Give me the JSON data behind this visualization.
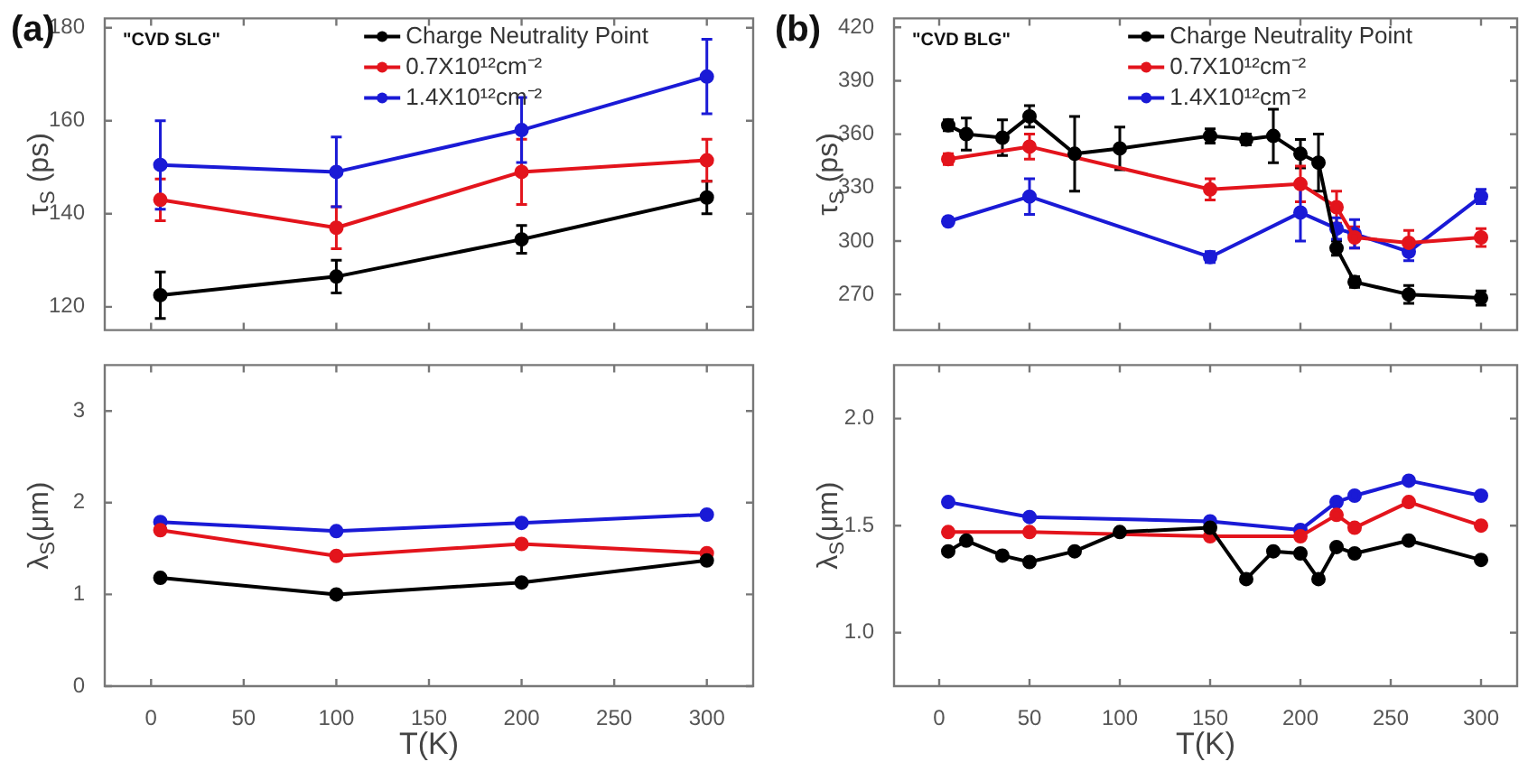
{
  "chart_data": [
    {
      "type": "line",
      "ylabel": "τ$_{S}$ (ps)",
      "annotations": [
        "(a)",
        "\"CVD SLG\""
      ],
      "xlim": [
        -25,
        325
      ],
      "xticks": [
        0,
        50,
        100,
        150,
        200,
        250,
        300
      ],
      "ylim": [
        115,
        182
      ],
      "yticks": [
        120,
        140,
        160,
        180
      ],
      "tick_labels": "y",
      "grid": false,
      "legend": "top right",
      "marker": "circle",
      "series": [
        {
          "name": "Charge Neutrality Point",
          "color": "#000000",
          "x": [
            5,
            100,
            200,
            300
          ],
          "values": [
            122.5,
            126.5,
            134.5,
            143.5
          ],
          "errors": [
            5,
            3.5,
            3,
            3.5
          ]
        },
        {
          "name": "0.7X10¹²cm⁻²",
          "color": "#e3141c",
          "x": [
            5,
            100,
            200,
            300
          ],
          "values": [
            143,
            137,
            149,
            151.5
          ],
          "errors": [
            4.5,
            4.5,
            7,
            4.5
          ]
        },
        {
          "name": "1.4X10¹²cm⁻²",
          "color": "#1a1ad6",
          "x": [
            5,
            100,
            200,
            300
          ],
          "values": [
            150.5,
            149,
            158,
            169.5
          ],
          "errors": [
            9.5,
            7.5,
            7,
            8
          ]
        }
      ]
    },
    {
      "type": "line",
      "xlabel": "T(K)",
      "ylabel": "λ$_{S}$(μm)",
      "xlim": [
        -25,
        325
      ],
      "xticks": [
        0,
        50,
        100,
        150,
        200,
        250,
        300
      ],
      "ylim": [
        0,
        3.5
      ],
      "yticks": [
        0,
        1,
        2,
        3
      ],
      "grid": false,
      "legend": false,
      "marker": "circle",
      "series": [
        {
          "color": "#000000",
          "x": [
            5,
            100,
            200,
            300
          ],
          "values": [
            1.18,
            1.0,
            1.13,
            1.37
          ]
        },
        {
          "color": "#e3141c",
          "x": [
            5,
            100,
            200,
            300
          ],
          "values": [
            1.7,
            1.42,
            1.55,
            1.45
          ]
        },
        {
          "color": "#1a1ad6",
          "x": [
            5,
            100,
            200,
            300
          ],
          "values": [
            1.79,
            1.69,
            1.78,
            1.87
          ]
        }
      ]
    },
    {
      "type": "line",
      "ylabel": "τ$_{S}$ (ps)",
      "annotations": [
        "(b)",
        "\"CVD BLG\""
      ],
      "xlim": [
        -25,
        320
      ],
      "xticks": [
        0,
        50,
        100,
        150,
        200,
        250,
        300
      ],
      "ylim": [
        250,
        425
      ],
      "yticks": [
        270,
        300,
        330,
        360,
        390,
        420
      ],
      "tick_labels": "y",
      "grid": false,
      "legend": "top right",
      "marker": "circle",
      "series": [
        {
          "name": "Charge Neutrality Point",
          "color": "#000000",
          "x": [
            5,
            15,
            35,
            50,
            75,
            100,
            150,
            170,
            185,
            200,
            210,
            220,
            230,
            260,
            300
          ],
          "values": [
            365,
            360,
            358,
            370,
            349,
            352,
            359,
            357,
            359,
            349,
            344,
            296,
            277,
            270,
            268
          ],
          "errors": [
            3,
            9,
            10,
            6,
            21,
            12,
            4,
            3,
            15,
            8,
            16,
            4,
            3,
            5,
            4
          ]
        },
        {
          "name": "0.7X10¹²cm⁻²",
          "color": "#e3141c",
          "x": [
            5,
            50,
            150,
            200,
            220,
            230,
            260,
            300
          ],
          "values": [
            346,
            353,
            329,
            332,
            319,
            302,
            299,
            302
          ],
          "errors": [
            3,
            7,
            6,
            10,
            9,
            6,
            7,
            5
          ]
        },
        {
          "name": "1.4X10¹²cm⁻²",
          "color": "#1a1ad6",
          "x": [
            5,
            50,
            150,
            200,
            220,
            230,
            260,
            300
          ],
          "values": [
            311,
            325,
            291,
            316,
            307,
            304,
            294,
            325
          ],
          "errors": [
            2,
            10,
            3,
            16,
            6,
            8,
            5,
            4
          ]
        }
      ]
    },
    {
      "type": "line",
      "xlabel": "T(K)",
      "ylabel": "λ$_{S}$(μm)",
      "xlim": [
        -25,
        320
      ],
      "xticks": [
        0,
        50,
        100,
        150,
        200,
        250,
        300
      ],
      "ylim": [
        0.75,
        2.25
      ],
      "yticks": [
        {
          "value": 1,
          "label": "1.0"
        },
        {
          "value": 1.5,
          "label": "1.5"
        },
        {
          "value": 2,
          "label": "2.0"
        }
      ],
      "grid": false,
      "legend": false,
      "marker": "circle",
      "series": [
        {
          "color": "#000000",
          "x": [
            5,
            15,
            35,
            50,
            75,
            100,
            150,
            170,
            185,
            200,
            210,
            220,
            230,
            260,
            300
          ],
          "values": [
            1.38,
            1.43,
            1.36,
            1.33,
            1.38,
            1.47,
            1.49,
            1.25,
            1.38,
            1.37,
            1.25,
            1.4,
            1.37,
            1.43,
            1.34
          ]
        },
        {
          "color": "#e3141c",
          "x": [
            5,
            50,
            150,
            200,
            220,
            230,
            260,
            300
          ],
          "values": [
            1.47,
            1.47,
            1.45,
            1.45,
            1.55,
            1.49,
            1.61,
            1.5
          ]
        },
        {
          "color": "#1a1ad6",
          "x": [
            5,
            50,
            150,
            200,
            220,
            230,
            260,
            300
          ],
          "values": [
            1.61,
            1.54,
            1.52,
            1.48,
            1.61,
            1.64,
            1.71,
            1.64
          ]
        }
      ]
    }
  ]
}
